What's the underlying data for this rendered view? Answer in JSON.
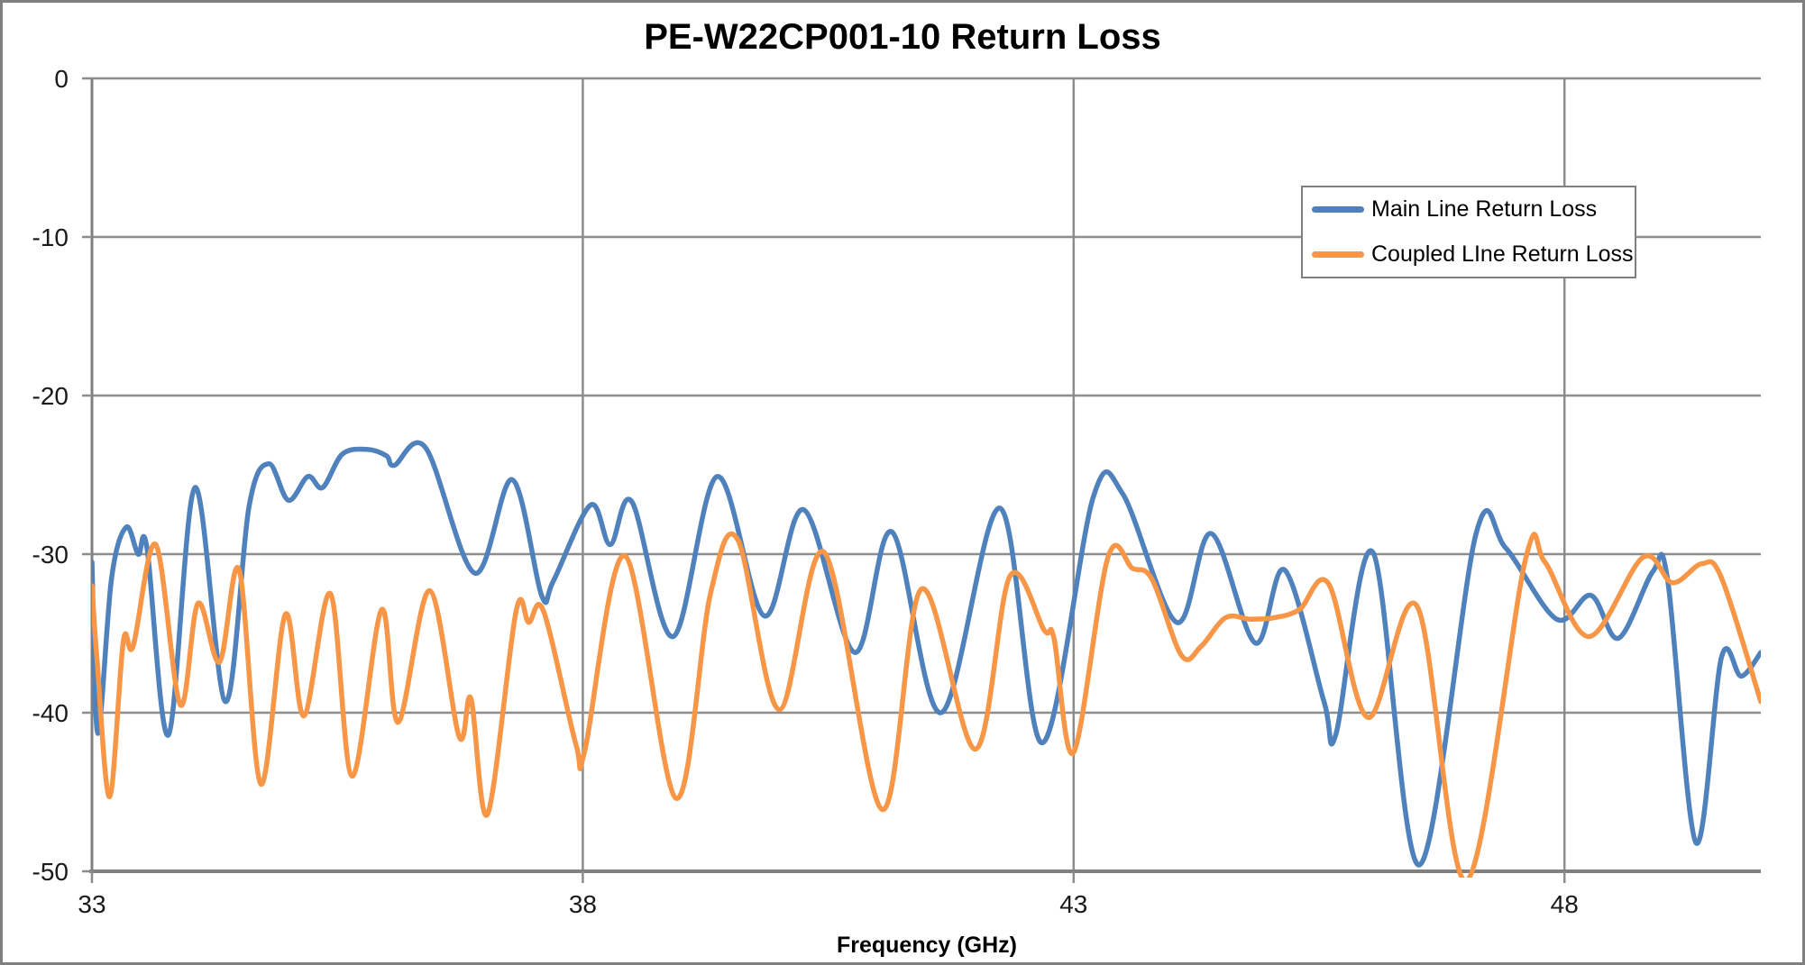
{
  "colors": {
    "background": "#FFFFFF",
    "figure_border": "#7F7F7F",
    "grid": "#8C8C8C",
    "axis": "#808080",
    "tick_text": "#1A1A1A",
    "title_text": "#000000"
  },
  "legend": {
    "items": [
      {
        "label": "Main Line Return Loss",
        "color": "#4F81BD"
      },
      {
        "label": "Coupled LIne Return Loss",
        "color": "#F79646"
      }
    ]
  },
  "chart_data": {
    "type": "line",
    "title": "PE-W22CP001-10 Return Loss",
    "xlabel": "Frequency (GHz)",
    "ylabel": "",
    "xlim": [
      33,
      50
    ],
    "ylim": [
      -50,
      0
    ],
    "xticks": [
      33,
      38,
      43,
      48
    ],
    "yticks": [
      0,
      -10,
      -20,
      -30,
      -40,
      -50
    ],
    "grid": true,
    "legend_position": "upper-right-inside",
    "series": [
      {
        "name": "Main Line Return Loss",
        "color": "#4F81BD",
        "points": [
          [
            33.0,
            -30.5
          ],
          [
            33.06,
            -41.3
          ],
          [
            33.2,
            -31.5
          ],
          [
            33.35,
            -28.3
          ],
          [
            33.47,
            -30.0
          ],
          [
            33.56,
            -29.6
          ],
          [
            33.78,
            -41.4
          ],
          [
            34.05,
            -25.8
          ],
          [
            34.36,
            -39.3
          ],
          [
            34.6,
            -27.0
          ],
          [
            34.8,
            -24.3
          ],
          [
            35.0,
            -26.6
          ],
          [
            35.2,
            -25.1
          ],
          [
            35.35,
            -25.8
          ],
          [
            35.55,
            -23.7
          ],
          [
            35.8,
            -23.4
          ],
          [
            36.0,
            -23.8
          ],
          [
            36.08,
            -24.4
          ],
          [
            36.4,
            -23.3
          ],
          [
            36.9,
            -31.2
          ],
          [
            37.28,
            -25.3
          ],
          [
            37.58,
            -32.6
          ],
          [
            37.7,
            -31.7
          ],
          [
            38.08,
            -26.9
          ],
          [
            38.28,
            -29.4
          ],
          [
            38.5,
            -26.7
          ],
          [
            38.92,
            -35.2
          ],
          [
            39.37,
            -25.1
          ],
          [
            39.85,
            -33.9
          ],
          [
            40.25,
            -27.2
          ],
          [
            40.77,
            -36.2
          ],
          [
            41.15,
            -28.6
          ],
          [
            41.65,
            -40.0
          ],
          [
            42.25,
            -27.1
          ],
          [
            42.68,
            -41.9
          ],
          [
            43.2,
            -26.4
          ],
          [
            43.5,
            -26.2
          ],
          [
            44.05,
            -34.3
          ],
          [
            44.4,
            -28.7
          ],
          [
            44.85,
            -35.6
          ],
          [
            45.15,
            -31.0
          ],
          [
            45.55,
            -39.3
          ],
          [
            45.67,
            -41.4
          ],
          [
            46.05,
            -29.9
          ],
          [
            46.52,
            -49.6
          ],
          [
            47.1,
            -28.7
          ],
          [
            47.4,
            -29.6
          ],
          [
            47.92,
            -34.1
          ],
          [
            48.27,
            -32.6
          ],
          [
            48.55,
            -35.3
          ],
          [
            48.9,
            -31.1
          ],
          [
            49.05,
            -31.6
          ],
          [
            49.34,
            -48.2
          ],
          [
            49.6,
            -36.5
          ],
          [
            49.8,
            -37.7
          ],
          [
            50.0,
            -36.2
          ]
        ]
      },
      {
        "name": "Coupled LIne Return Loss",
        "color": "#F79646",
        "points": [
          [
            33.0,
            -32.0
          ],
          [
            33.05,
            -36.5
          ],
          [
            33.18,
            -45.3
          ],
          [
            33.32,
            -35.5
          ],
          [
            33.42,
            -35.8
          ],
          [
            33.65,
            -29.4
          ],
          [
            33.9,
            -39.5
          ],
          [
            34.08,
            -33.1
          ],
          [
            34.3,
            -36.8
          ],
          [
            34.5,
            -31.0
          ],
          [
            34.72,
            -44.5
          ],
          [
            34.97,
            -33.8
          ],
          [
            35.16,
            -40.2
          ],
          [
            35.43,
            -32.5
          ],
          [
            35.65,
            -44.0
          ],
          [
            35.95,
            -33.5
          ],
          [
            36.12,
            -40.6
          ],
          [
            36.44,
            -32.3
          ],
          [
            36.74,
            -41.5
          ],
          [
            36.86,
            -39.1
          ],
          [
            37.03,
            -46.4
          ],
          [
            37.32,
            -33.6
          ],
          [
            37.45,
            -34.3
          ],
          [
            37.6,
            -33.6
          ],
          [
            37.93,
            -42.0
          ],
          [
            38.02,
            -42.4
          ],
          [
            38.43,
            -30.1
          ],
          [
            38.95,
            -45.4
          ],
          [
            39.3,
            -32.5
          ],
          [
            39.58,
            -29.1
          ],
          [
            40.0,
            -39.8
          ],
          [
            40.46,
            -29.9
          ],
          [
            41.05,
            -46.1
          ],
          [
            41.45,
            -32.2
          ],
          [
            42.0,
            -42.3
          ],
          [
            42.35,
            -31.4
          ],
          [
            42.7,
            -34.8
          ],
          [
            42.8,
            -35.3
          ],
          [
            43.0,
            -42.5
          ],
          [
            43.35,
            -30.2
          ],
          [
            43.6,
            -30.9
          ],
          [
            43.8,
            -31.6
          ],
          [
            44.1,
            -36.4
          ],
          [
            44.3,
            -35.8
          ],
          [
            44.55,
            -34.0
          ],
          [
            44.8,
            -34.1
          ],
          [
            45.05,
            -34.0
          ],
          [
            45.3,
            -33.5
          ],
          [
            45.6,
            -31.9
          ],
          [
            46.0,
            -40.3
          ],
          [
            46.5,
            -33.3
          ],
          [
            47.0,
            -50.6
          ],
          [
            47.6,
            -30.4
          ],
          [
            47.8,
            -30.5
          ],
          [
            48.25,
            -35.2
          ],
          [
            48.8,
            -30.2
          ],
          [
            49.1,
            -31.8
          ],
          [
            49.4,
            -30.6
          ],
          [
            49.6,
            -31.5
          ],
          [
            50.0,
            -39.3
          ]
        ]
      }
    ]
  }
}
